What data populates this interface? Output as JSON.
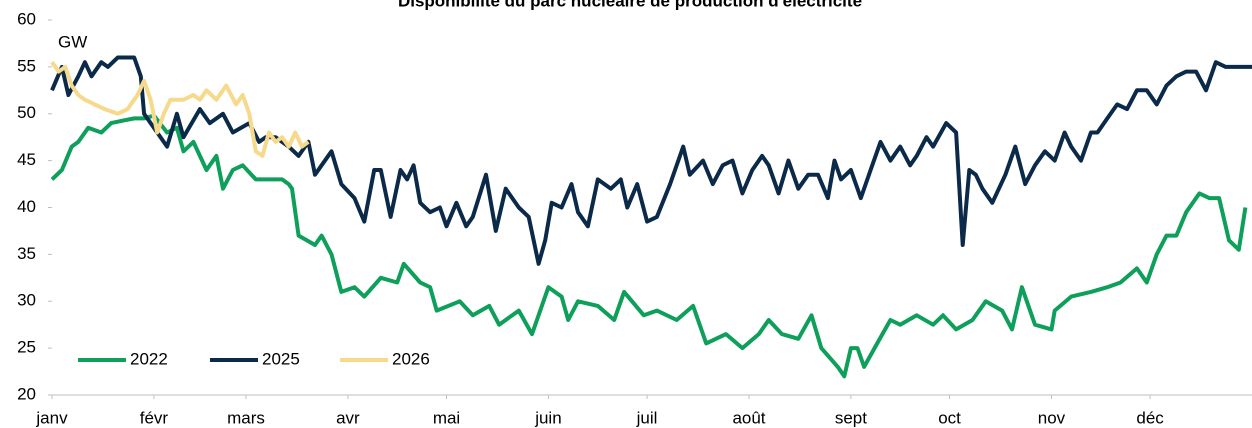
{
  "chart_data": {
    "type": "line",
    "title": "Disponibilité du parc nucléaire de production d'électricité",
    "y_label": "GW",
    "xlim": [
      0,
      365
    ],
    "xticks": [
      {
        "value": 0,
        "label": "janv"
      },
      {
        "value": 31,
        "label": "févr"
      },
      {
        "value": 59,
        "label": "mars"
      },
      {
        "value": 90,
        "label": "avr"
      },
      {
        "value": 120,
        "label": "mai"
      },
      {
        "value": 151,
        "label": "juin"
      },
      {
        "value": 181,
        "label": "juil"
      },
      {
        "value": 212,
        "label": "août"
      },
      {
        "value": 243,
        "label": "sept"
      },
      {
        "value": 273,
        "label": "oct"
      },
      {
        "value": 304,
        "label": "nov"
      },
      {
        "value": 334,
        "label": "déc"
      }
    ],
    "ylim": [
      20,
      60
    ],
    "yticks": [
      20,
      25,
      30,
      35,
      40,
      45,
      50,
      55,
      60
    ],
    "legend": "lower left",
    "series": [
      {
        "name": "2022",
        "color": "#0e9f5b",
        "x": [
          0,
          3,
          6,
          8,
          11,
          15,
          18,
          22,
          25,
          28,
          31,
          35,
          38,
          40,
          43,
          47,
          50,
          52,
          55,
          58,
          62,
          66,
          70,
          72,
          73,
          75,
          80,
          82,
          85,
          88,
          92,
          95,
          100,
          105,
          107,
          112,
          115,
          117,
          124,
          128,
          133,
          136,
          142,
          146,
          151,
          155,
          157,
          160,
          166,
          171,
          174,
          180,
          184,
          190,
          195,
          199,
          205,
          210,
          215,
          218,
          222,
          227,
          231,
          234,
          239,
          241,
          243,
          245,
          247,
          251,
          255,
          258,
          263,
          268,
          271,
          275,
          280,
          284,
          289,
          292,
          295,
          299,
          304,
          305,
          310,
          316,
          321,
          325,
          330,
          333,
          336,
          339,
          342,
          345,
          349,
          352,
          355,
          358,
          361,
          363
        ],
        "values": [
          43,
          44,
          46.5,
          47,
          48.5,
          48,
          49,
          49.3,
          49.5,
          49.5,
          49.8,
          48,
          48.5,
          46,
          47,
          44,
          45.5,
          42,
          44,
          44.5,
          43,
          43,
          43,
          42.5,
          42,
          37,
          36,
          37,
          35,
          31,
          31.5,
          30.5,
          32.5,
          32,
          34,
          32,
          31.5,
          29,
          30,
          28.5,
          29.5,
          27.5,
          29,
          26.5,
          31.5,
          30.5,
          28,
          30,
          29.5,
          28,
          31,
          28.5,
          29,
          28,
          29.5,
          25.5,
          26.5,
          25,
          26.5,
          28,
          26.5,
          26,
          28.5,
          25,
          23,
          22,
          25,
          25,
          23,
          25.5,
          28,
          27.5,
          28.5,
          27.5,
          28.5,
          27,
          28,
          30,
          29,
          27,
          31.5,
          27.5,
          27,
          29,
          30.5,
          31,
          31.5,
          32,
          33.5,
          32,
          35,
          37,
          37,
          39.5,
          41.5,
          41,
          41,
          36.5,
          35.5,
          40
        ]
      },
      {
        "name": "2025",
        "color": "#0b2a4a",
        "x": [
          0,
          3,
          5,
          8,
          10,
          12,
          15,
          17,
          20,
          25,
          27,
          28,
          32,
          35,
          38,
          40,
          45,
          48,
          52,
          55,
          60,
          63,
          65,
          68,
          72,
          75,
          78,
          80,
          82,
          85,
          88,
          92,
          95,
          98,
          100,
          103,
          106,
          108,
          110,
          112,
          115,
          118,
          120,
          123,
          126,
          128,
          132,
          135,
          138,
          142,
          145,
          148,
          150,
          152,
          155,
          158,
          160,
          163,
          166,
          170,
          173,
          175,
          178,
          181,
          184,
          188,
          192,
          194,
          198,
          201,
          204,
          207,
          210,
          213,
          216,
          218,
          221,
          224,
          227,
          230,
          233,
          236,
          238,
          240,
          243,
          246,
          249,
          252,
          255,
          258,
          261,
          263,
          266,
          268,
          272,
          275,
          277,
          279,
          281,
          283,
          286,
          290,
          293,
          296,
          299,
          302,
          305,
          308,
          310,
          313,
          316,
          318,
          321,
          324,
          327,
          330,
          333,
          336,
          339,
          342,
          345,
          348,
          351,
          354,
          357,
          361,
          365
        ],
        "values": [
          52.5,
          55,
          52,
          54,
          55.5,
          54,
          55.5,
          55,
          56,
          56,
          54,
          50,
          48,
          46.5,
          50,
          47.5,
          50.5,
          49,
          50,
          48,
          49,
          47,
          47.5,
          47.5,
          46.5,
          45.5,
          47,
          43.5,
          44.5,
          46,
          42.5,
          41,
          38.5,
          44,
          44,
          39,
          44,
          43,
          44.5,
          40.5,
          39.5,
          40,
          38,
          40.5,
          38,
          39,
          43.5,
          37.5,
          42,
          40,
          39,
          34,
          36.5,
          40.5,
          40,
          42.5,
          39.5,
          38,
          43,
          42,
          43,
          40,
          42.5,
          38.5,
          39,
          42.5,
          46.5,
          43.5,
          45,
          42.5,
          44.5,
          45,
          41.5,
          44,
          45.5,
          44.5,
          41.5,
          45,
          42,
          43.5,
          43.5,
          41,
          45,
          43,
          44,
          41,
          44,
          47,
          45,
          46.5,
          44.5,
          45.5,
          47.5,
          46.5,
          49,
          48,
          36,
          44,
          43.5,
          42,
          40.5,
          43.5,
          46.5,
          42.5,
          44.5,
          46,
          45,
          48,
          46.5,
          45,
          48,
          48,
          49.5,
          51,
          50.5,
          52.5,
          52.5,
          51,
          53,
          54,
          54.5,
          54.5,
          52.5,
          55.5,
          55,
          55,
          55
        ]
      },
      {
        "name": "2026",
        "color": "#f7d98b",
        "x": [
          0,
          2,
          4,
          6,
          8,
          10,
          13,
          16,
          20,
          23,
          26,
          28,
          30,
          32,
          34,
          36,
          40,
          43,
          45,
          47,
          50,
          53,
          56,
          58,
          60,
          62,
          64,
          66,
          68,
          70,
          72,
          74,
          76,
          78
        ],
        "values": [
          55.5,
          54.5,
          55,
          53,
          52,
          51.5,
          51,
          50.5,
          50,
          50.5,
          52,
          53.5,
          51.5,
          48,
          50,
          51.5,
          51.5,
          52,
          51.5,
          52.5,
          51.5,
          53,
          51,
          52,
          50,
          46,
          45.5,
          48,
          47,
          47.5,
          46.5,
          48,
          46.5,
          47
        ]
      }
    ]
  }
}
